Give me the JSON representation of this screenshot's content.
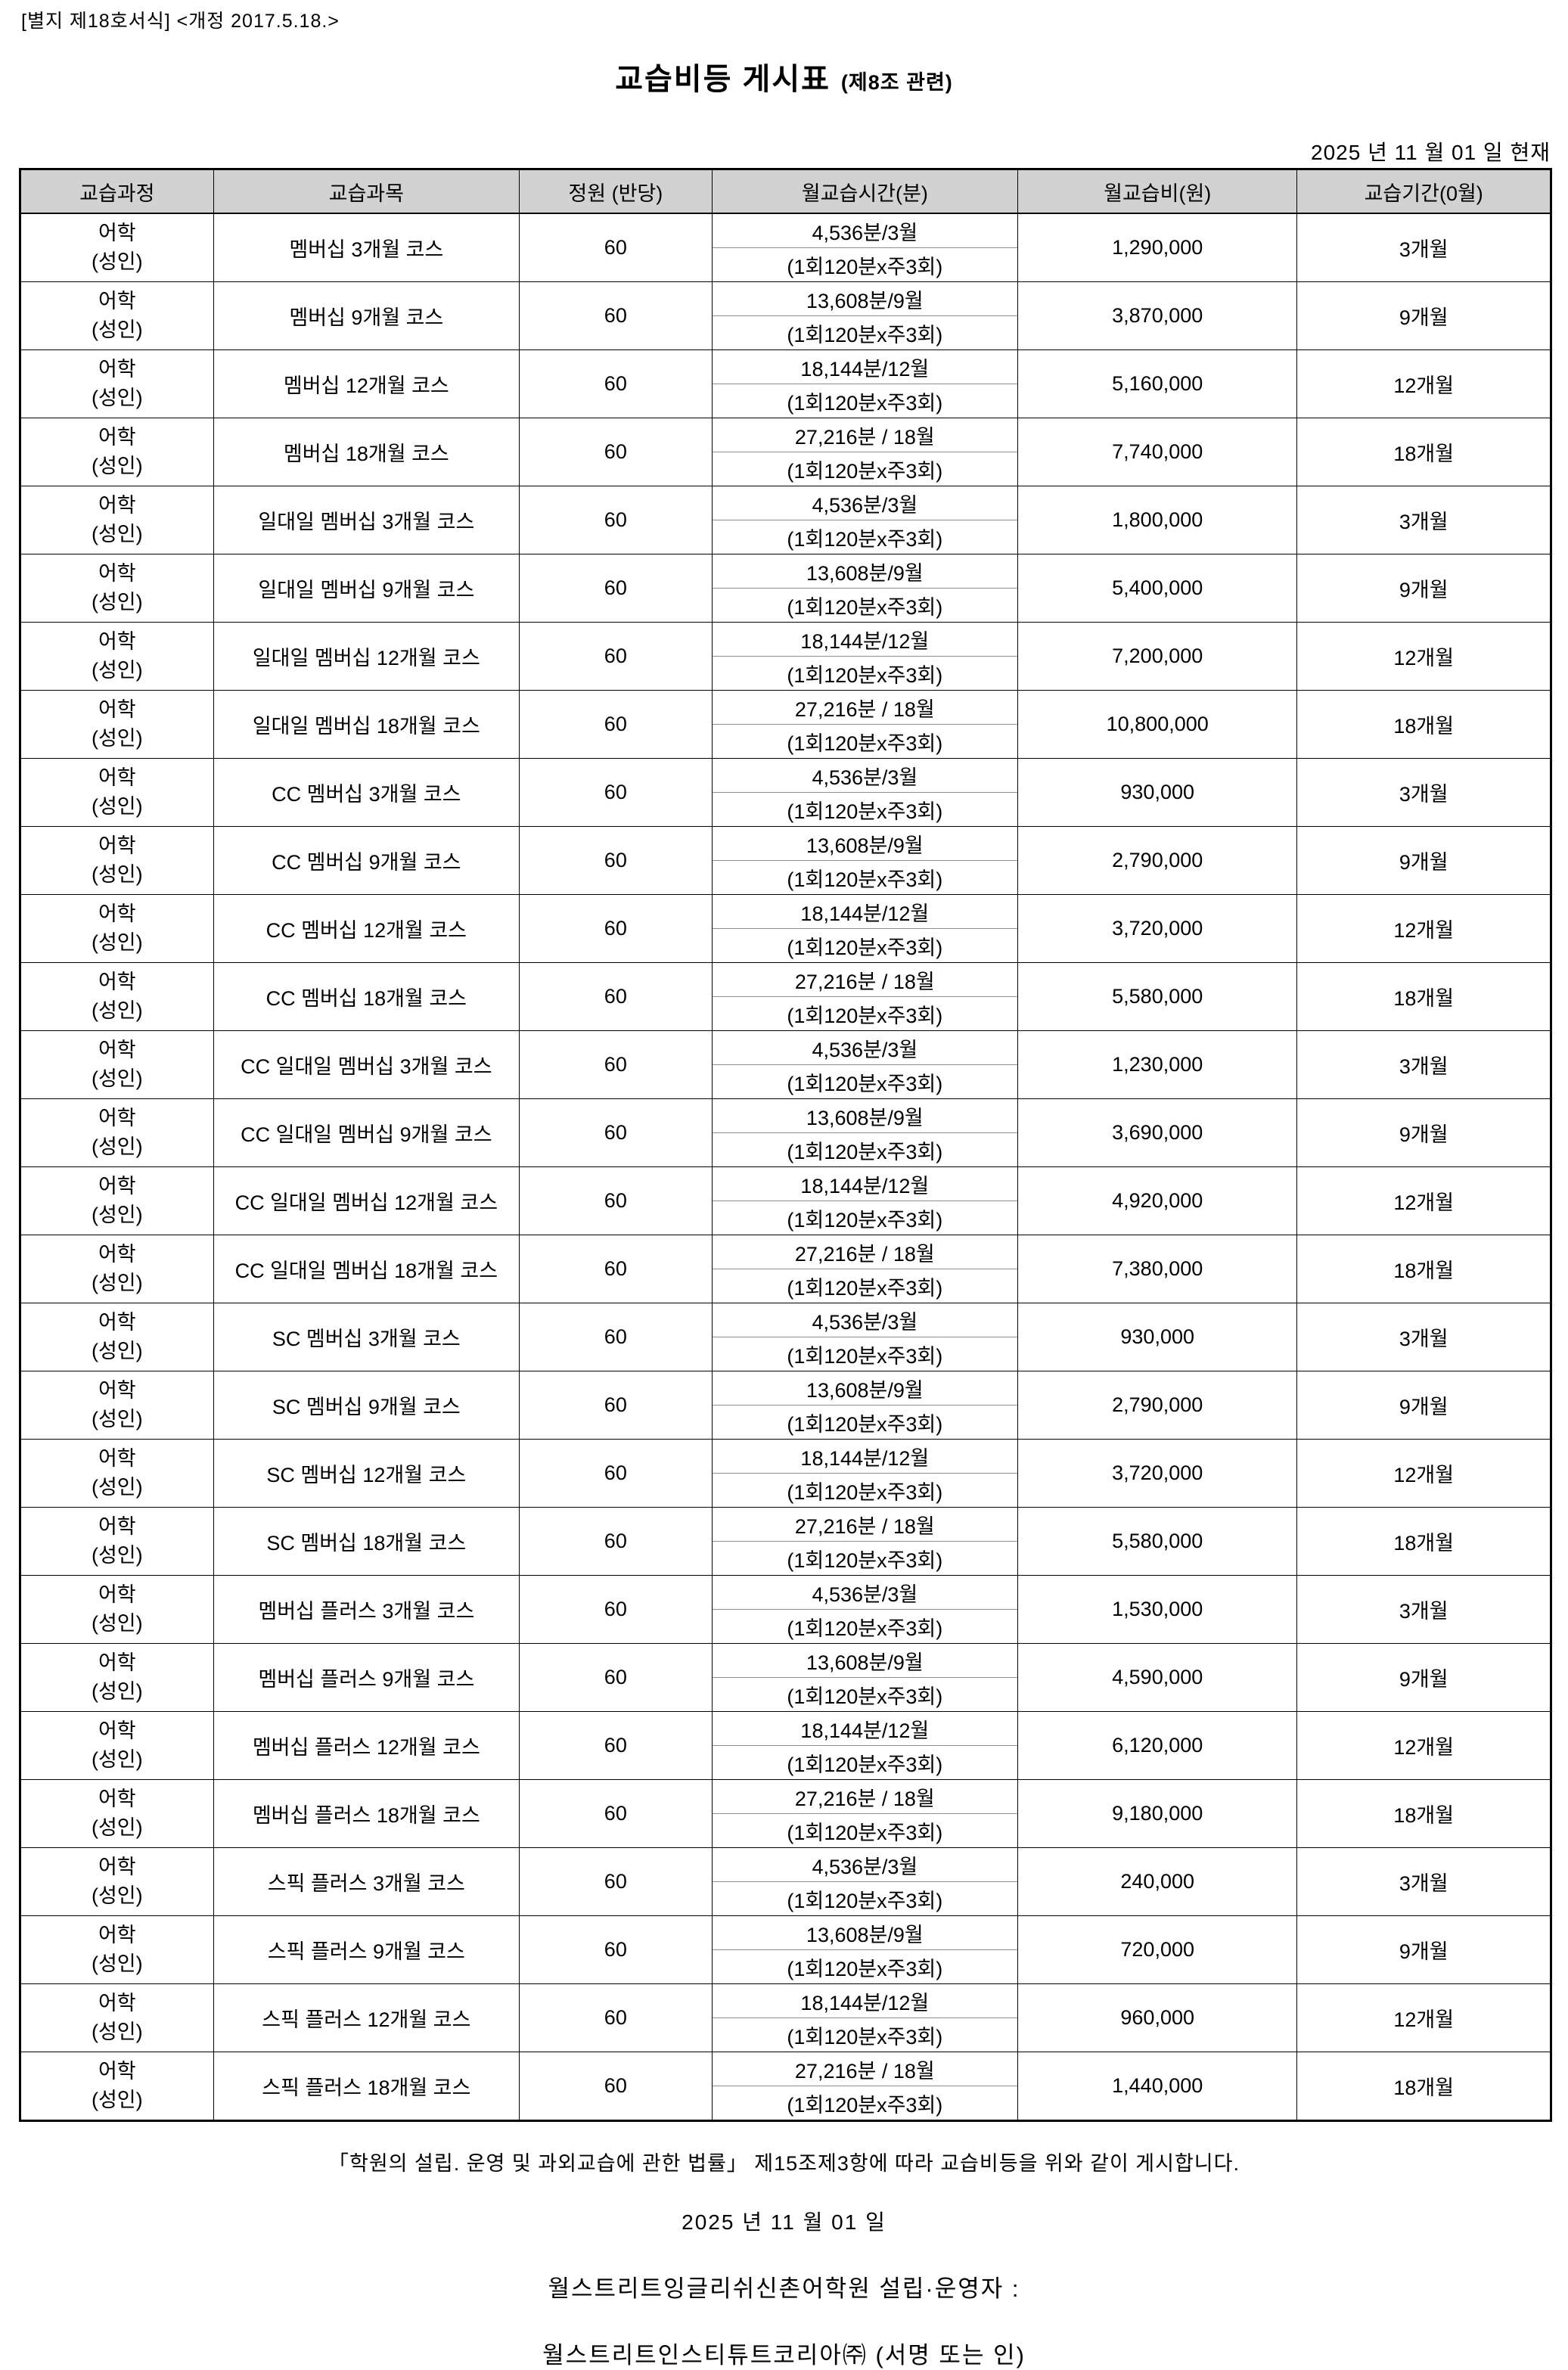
{
  "form_ref": "[별지 제18호서식] <개정 2017.5.18.>",
  "title": "교습비등 게시표",
  "title_note": "(제8조 관련)",
  "as_of_date": "2025 년 11 월 01 일 현재",
  "table": {
    "headers": [
      "교습과정",
      "교습과목",
      "정원 (반당)",
      "월교습시간(분)",
      "월교습비(원)",
      "교습기간(0월)"
    ],
    "rows": [
      {
        "category": [
          "어학",
          "(성인)"
        ],
        "subject": "멤버십 3개월 코스",
        "capacity": "60",
        "time_main": "4,536분/3월",
        "time_sub": "(1회120분x주3회)",
        "fee": "1,290,000",
        "period": "3개월"
      },
      {
        "category": [
          "어학",
          "(성인)"
        ],
        "subject": "멤버십 9개월 코스",
        "capacity": "60",
        "time_main": "13,608분/9월",
        "time_sub": "(1회120분x주3회)",
        "fee": "3,870,000",
        "period": "9개월"
      },
      {
        "category": [
          "어학",
          "(성인)"
        ],
        "subject": "멤버십 12개월 코스",
        "capacity": "60",
        "time_main": "18,144분/12월",
        "time_sub": "(1회120분x주3회)",
        "fee": "5,160,000",
        "period": "12개월"
      },
      {
        "category": [
          "어학",
          "(성인)"
        ],
        "subject": "멤버십 18개월 코스",
        "capacity": "60",
        "time_main": "27,216분 / 18월",
        "time_sub": "(1회120분x주3회)",
        "fee": "7,740,000",
        "period": "18개월"
      },
      {
        "category": [
          "어학",
          "(성인)"
        ],
        "subject": "일대일 멤버십 3개월 코스",
        "capacity": "60",
        "time_main": "4,536분/3월",
        "time_sub": "(1회120분x주3회)",
        "fee": "1,800,000",
        "period": "3개월"
      },
      {
        "category": [
          "어학",
          "(성인)"
        ],
        "subject": "일대일 멤버십 9개월 코스",
        "capacity": "60",
        "time_main": "13,608분/9월",
        "time_sub": "(1회120분x주3회)",
        "fee": "5,400,000",
        "period": "9개월"
      },
      {
        "category": [
          "어학",
          "(성인)"
        ],
        "subject": "일대일 멤버십 12개월 코스",
        "capacity": "60",
        "time_main": "18,144분/12월",
        "time_sub": "(1회120분x주3회)",
        "fee": "7,200,000",
        "period": "12개월"
      },
      {
        "category": [
          "어학",
          "(성인)"
        ],
        "subject": "일대일 멤버십 18개월 코스",
        "capacity": "60",
        "time_main": "27,216분 / 18월",
        "time_sub": "(1회120분x주3회)",
        "fee": "10,800,000",
        "period": "18개월"
      },
      {
        "category": [
          "어학",
          "(성인)"
        ],
        "subject": "CC 멤버십 3개월 코스",
        "capacity": "60",
        "time_main": "4,536분/3월",
        "time_sub": "(1회120분x주3회)",
        "fee": "930,000",
        "period": "3개월"
      },
      {
        "category": [
          "어학",
          "(성인)"
        ],
        "subject": "CC 멤버십 9개월 코스",
        "capacity": "60",
        "time_main": "13,608분/9월",
        "time_sub": "(1회120분x주3회)",
        "fee": "2,790,000",
        "period": "9개월"
      },
      {
        "category": [
          "어학",
          "(성인)"
        ],
        "subject": "CC 멤버십 12개월 코스",
        "capacity": "60",
        "time_main": "18,144분/12월",
        "time_sub": "(1회120분x주3회)",
        "fee": "3,720,000",
        "period": "12개월"
      },
      {
        "category": [
          "어학",
          "(성인)"
        ],
        "subject": "CC 멤버십 18개월 코스",
        "capacity": "60",
        "time_main": "27,216분 / 18월",
        "time_sub": "(1회120분x주3회)",
        "fee": "5,580,000",
        "period": "18개월"
      },
      {
        "category": [
          "어학",
          "(성인)"
        ],
        "subject": "CC 일대일 멤버십 3개월 코스",
        "capacity": "60",
        "time_main": "4,536분/3월",
        "time_sub": "(1회120분x주3회)",
        "fee": "1,230,000",
        "period": "3개월"
      },
      {
        "category": [
          "어학",
          "(성인)"
        ],
        "subject": "CC 일대일 멤버십 9개월 코스",
        "capacity": "60",
        "time_main": "13,608분/9월",
        "time_sub": "(1회120분x주3회)",
        "fee": "3,690,000",
        "period": "9개월"
      },
      {
        "category": [
          "어학",
          "(성인)"
        ],
        "subject": "CC 일대일 멤버십 12개월 코스",
        "capacity": "60",
        "time_main": "18,144분/12월",
        "time_sub": "(1회120분x주3회)",
        "fee": "4,920,000",
        "period": "12개월"
      },
      {
        "category": [
          "어학",
          "(성인)"
        ],
        "subject": "CC 일대일 멤버십 18개월 코스",
        "capacity": "60",
        "time_main": "27,216분 / 18월",
        "time_sub": "(1회120분x주3회)",
        "fee": "7,380,000",
        "period": "18개월"
      },
      {
        "category": [
          "어학",
          "(성인)"
        ],
        "subject": "SC 멤버십 3개월 코스",
        "capacity": "60",
        "time_main": "4,536분/3월",
        "time_sub": "(1회120분x주3회)",
        "fee": "930,000",
        "period": "3개월"
      },
      {
        "category": [
          "어학",
          "(성인)"
        ],
        "subject": "SC 멤버십 9개월 코스",
        "capacity": "60",
        "time_main": "13,608분/9월",
        "time_sub": "(1회120분x주3회)",
        "fee": "2,790,000",
        "period": "9개월"
      },
      {
        "category": [
          "어학",
          "(성인)"
        ],
        "subject": "SC 멤버십 12개월 코스",
        "capacity": "60",
        "time_main": "18,144분/12월",
        "time_sub": "(1회120분x주3회)",
        "fee": "3,720,000",
        "period": "12개월"
      },
      {
        "category": [
          "어학",
          "(성인)"
        ],
        "subject": "SC 멤버십 18개월 코스",
        "capacity": "60",
        "time_main": "27,216분 / 18월",
        "time_sub": "(1회120분x주3회)",
        "fee": "5,580,000",
        "period": "18개월"
      },
      {
        "category": [
          "어학",
          "(성인)"
        ],
        "subject": "멤버십 플러스 3개월 코스",
        "capacity": "60",
        "time_main": "4,536분/3월",
        "time_sub": "(1회120분x주3회)",
        "fee": "1,530,000",
        "period": "3개월"
      },
      {
        "category": [
          "어학",
          "(성인)"
        ],
        "subject": "멤버십 플러스 9개월 코스",
        "capacity": "60",
        "time_main": "13,608분/9월",
        "time_sub": "(1회120분x주3회)",
        "fee": "4,590,000",
        "period": "9개월"
      },
      {
        "category": [
          "어학",
          "(성인)"
        ],
        "subject": "멤버십 플러스 12개월 코스",
        "capacity": "60",
        "time_main": "18,144분/12월",
        "time_sub": "(1회120분x주3회)",
        "fee": "6,120,000",
        "period": "12개월"
      },
      {
        "category": [
          "어학",
          "(성인)"
        ],
        "subject": "멤버십 플러스 18개월 코스",
        "capacity": "60",
        "time_main": "27,216분 / 18월",
        "time_sub": "(1회120분x주3회)",
        "fee": "9,180,000",
        "period": "18개월"
      },
      {
        "category": [
          "어학",
          "(성인)"
        ],
        "subject": "스픽 플러스 3개월 코스",
        "capacity": "60",
        "time_main": "4,536분/3월",
        "time_sub": "(1회120분x주3회)",
        "fee": "240,000",
        "period": "3개월"
      },
      {
        "category": [
          "어학",
          "(성인)"
        ],
        "subject": "스픽 플러스 9개월 코스",
        "capacity": "60",
        "time_main": "13,608분/9월",
        "time_sub": "(1회120분x주3회)",
        "fee": "720,000",
        "period": "9개월"
      },
      {
        "category": [
          "어학",
          "(성인)"
        ],
        "subject": "스픽 플러스 12개월 코스",
        "capacity": "60",
        "time_main": "18,144분/12월",
        "time_sub": "(1회120분x주3회)",
        "fee": "960,000",
        "period": "12개월"
      },
      {
        "category": [
          "어학",
          "(성인)"
        ],
        "subject": "스픽 플러스 18개월 코스",
        "capacity": "60",
        "time_main": "27,216분 / 18월",
        "time_sub": "(1회120분x주3회)",
        "fee": "1,440,000",
        "period": "18개월"
      }
    ]
  },
  "footer": {
    "notice": "「학원의 설립. 운영 및 과외교습에 관한 법률」 제15조제3항에 따라 교습비등을 위와 같이 게시합니다.",
    "date": "2025 년 11 월 01 일",
    "operator_line": "월스트리트잉글리쉬신촌어학원 설립·운영자 :",
    "company_line": "월스트리트인스티튜트코리아㈜ (서명 또는 인)"
  }
}
